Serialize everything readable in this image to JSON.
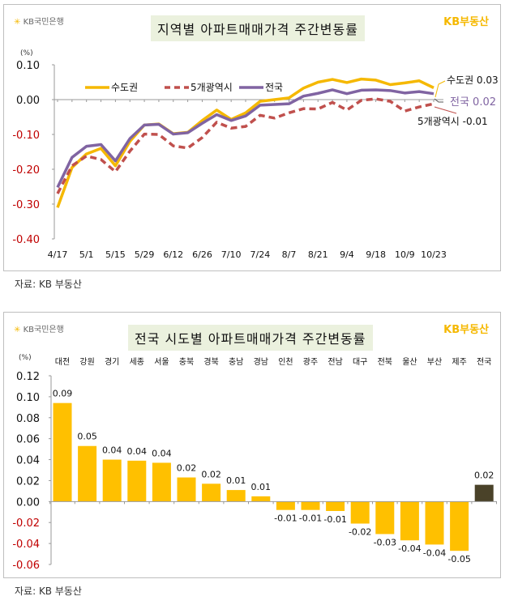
{
  "source_note": "자료: KB 부동산",
  "logo_text": "KB국민은행",
  "brand_text": "KB부동산",
  "colors": {
    "capital": "#f5b800",
    "metro5": "#c0504d",
    "nation": "#8064a2",
    "bar": "#ffc000",
    "bar_highlight": "#4a4229",
    "negative_tick": "#c00000"
  },
  "chart_data": [
    {
      "type": "line",
      "title": "지역별 아파트매매가격 주간변동률",
      "unit": "(%)",
      "ylim": [
        -0.4,
        0.1
      ],
      "yticks": [
        "0.10",
        "0.00",
        "-0.10",
        "-0.20",
        "-0.30",
        "-0.40"
      ],
      "xtick_labels": [
        "4/17",
        "5/1",
        "5/15",
        "5/29",
        "6/12",
        "6/26",
        "7/10",
        "7/24",
        "8/7",
        "8/21",
        "9/4",
        "9/18",
        "10/9",
        "10/23"
      ],
      "legend_placement": "top-left",
      "series": [
        {
          "name": "수도권",
          "style": "solid",
          "end_label": "수도권 0.03",
          "values": [
            -0.31,
            -0.195,
            -0.156,
            -0.14,
            -0.19,
            -0.12,
            -0.073,
            -0.07,
            -0.098,
            -0.094,
            -0.06,
            -0.03,
            -0.057,
            -0.038,
            -0.005,
            0.0,
            0.005,
            0.033,
            0.05,
            0.058,
            0.049,
            0.059,
            0.056,
            0.043,
            0.048,
            0.054,
            0.034
          ]
        },
        {
          "name": "5개광역시",
          "style": "dashed",
          "end_label": "5개광역시 -0.01",
          "values": [
            -0.27,
            -0.19,
            -0.162,
            -0.172,
            -0.207,
            -0.148,
            -0.099,
            -0.1,
            -0.133,
            -0.139,
            -0.109,
            -0.065,
            -0.082,
            -0.077,
            -0.045,
            -0.053,
            -0.038,
            -0.026,
            -0.027,
            -0.008,
            -0.03,
            -0.002,
            0.002,
            -0.005,
            -0.033,
            -0.021,
            -0.012
          ]
        },
        {
          "name": "전국",
          "style": "solid",
          "end_label": "전국 0.02",
          "values": [
            -0.252,
            -0.166,
            -0.134,
            -0.129,
            -0.176,
            -0.112,
            -0.073,
            -0.071,
            -0.099,
            -0.095,
            -0.068,
            -0.043,
            -0.06,
            -0.047,
            -0.016,
            -0.014,
            -0.012,
            0.01,
            0.018,
            0.028,
            0.017,
            0.027,
            0.028,
            0.026,
            0.019,
            0.023,
            0.017
          ]
        }
      ]
    },
    {
      "type": "bar",
      "title": "전국 시도별 아파트매매가격 주간변동률",
      "unit": "(%)",
      "ylim": [
        -0.06,
        0.12
      ],
      "yticks": [
        "0.12",
        "0.10",
        "0.08",
        "0.06",
        "0.04",
        "0.02",
        "0.00",
        "-0.02",
        "-0.04",
        "-0.06"
      ],
      "categories": [
        "대전",
        "강원",
        "경기",
        "세종",
        "서울",
        "충북",
        "경북",
        "충남",
        "경남",
        "인천",
        "광주",
        "전남",
        "대구",
        "전북",
        "울산",
        "부산",
        "제주",
        "전국"
      ],
      "values": [
        0.094,
        0.053,
        0.04,
        0.039,
        0.037,
        0.023,
        0.017,
        0.011,
        0.005,
        -0.008,
        -0.008,
        -0.009,
        -0.021,
        -0.031,
        -0.037,
        -0.041,
        -0.047,
        0.016
      ],
      "data_labels": [
        "0.09",
        "0.05",
        "0.04",
        "0.04",
        "0.04",
        "0.02",
        "0.02",
        "0.01",
        "0.01",
        "-0.01",
        "-0.01",
        "-0.01",
        "-0.02",
        "-0.03",
        "-0.04",
        "-0.04",
        "-0.05",
        "0.02"
      ]
    }
  ]
}
